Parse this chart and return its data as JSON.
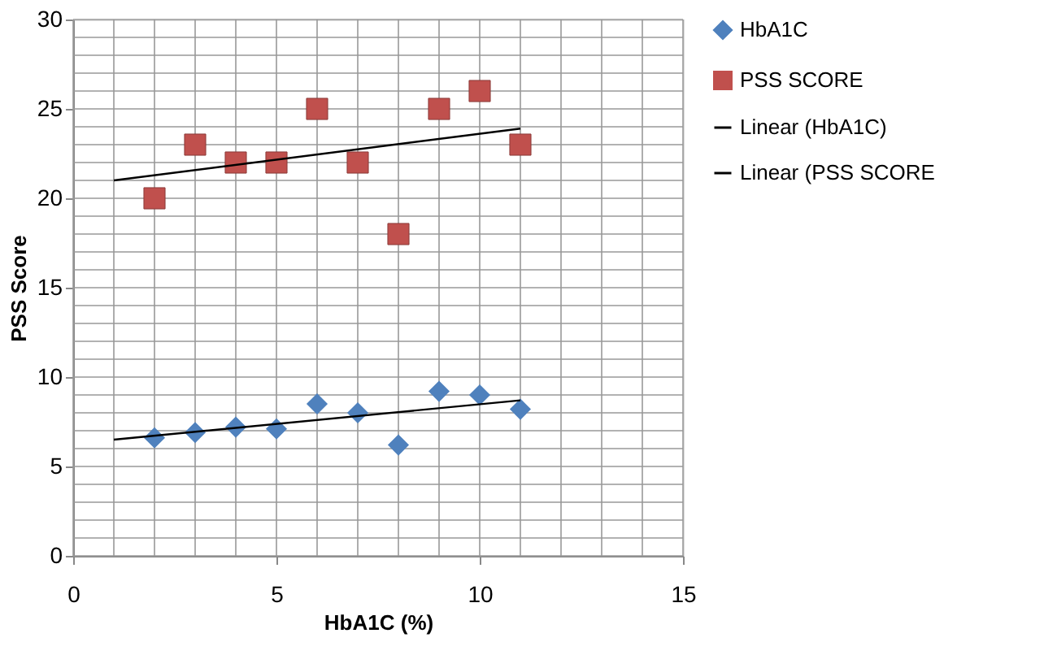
{
  "chart_data": {
    "type": "scatter",
    "xlabel": "HbA1C (%)",
    "ylabel": "PSS Score",
    "xlim": [
      0,
      15
    ],
    "ylim": [
      0,
      30
    ],
    "xticks": [
      0,
      {
        "value": 1,
        "label": null
      },
      {
        "value": 2,
        "label": null
      },
      {
        "value": 3,
        "label": null
      },
      {
        "value": 4,
        "label": null
      },
      5,
      {
        "value": 6,
        "label": null
      },
      {
        "value": 7,
        "label": null
      },
      {
        "value": 8,
        "label": null
      },
      {
        "value": 9,
        "label": null
      },
      10,
      {
        "value": 11,
        "label": null
      },
      {
        "value": 12,
        "label": null
      },
      {
        "value": 13,
        "label": null
      },
      {
        "value": 14,
        "label": null
      },
      15
    ],
    "yticks": [
      0,
      {
        "value": 1,
        "label": null
      },
      {
        "value": 2,
        "label": null
      },
      {
        "value": 3,
        "label": null
      },
      {
        "value": 4,
        "label": null
      },
      5,
      {
        "value": 6,
        "label": null
      },
      {
        "value": 7,
        "label": null
      },
      {
        "value": 8,
        "label": null
      },
      {
        "value": 9,
        "label": null
      },
      10,
      {
        "value": 11,
        "label": null
      },
      {
        "value": 12,
        "label": null
      },
      {
        "value": 13,
        "label": null
      },
      {
        "value": 14,
        "label": null
      },
      15,
      {
        "value": 16,
        "label": null
      },
      {
        "value": 17,
        "label": null
      },
      {
        "value": 18,
        "label": null
      },
      {
        "value": 19,
        "label": null
      },
      20,
      {
        "value": 21,
        "label": null
      },
      {
        "value": 22,
        "label": null
      },
      {
        "value": 23,
        "label": null
      },
      {
        "value": 24,
        "label": null
      },
      25,
      {
        "value": 26,
        "label": null
      },
      {
        "value": 27,
        "label": null
      },
      {
        "value": 28,
        "label": null
      },
      {
        "value": 29,
        "label": null
      },
      30
    ],
    "grid": true,
    "legend": "right",
    "series": [
      {
        "name": "HbA1C",
        "type": "scatter",
        "marker": "diamond",
        "color": "#4f81bd",
        "x": [
          2,
          3,
          4,
          5,
          6,
          7,
          8,
          9,
          10,
          11
        ],
        "values": [
          6.6,
          6.9,
          7.2,
          7.1,
          8.5,
          8.0,
          6.2,
          9.2,
          9.0,
          8.2
        ]
      },
      {
        "name": "PSS SCORE",
        "type": "scatter",
        "marker": "square",
        "color": "#c0504d",
        "x": [
          2,
          3,
          4,
          5,
          6,
          7,
          8,
          9,
          10,
          11
        ],
        "values": [
          20,
          23,
          22,
          22,
          25,
          22,
          18,
          25,
          26,
          23
        ]
      },
      {
        "name": "Linear (HbA1C)",
        "type": "line",
        "marker": "none",
        "line_style": "solid",
        "color": "#000000",
        "x": [
          1,
          11
        ],
        "values": [
          6.5,
          8.7
        ]
      },
      {
        "name": "Linear (PSS SCORE",
        "type": "line",
        "marker": "none",
        "line_style": "solid",
        "color": "#000000",
        "x": [
          1,
          11
        ],
        "values": [
          21,
          23.9
        ]
      }
    ]
  }
}
